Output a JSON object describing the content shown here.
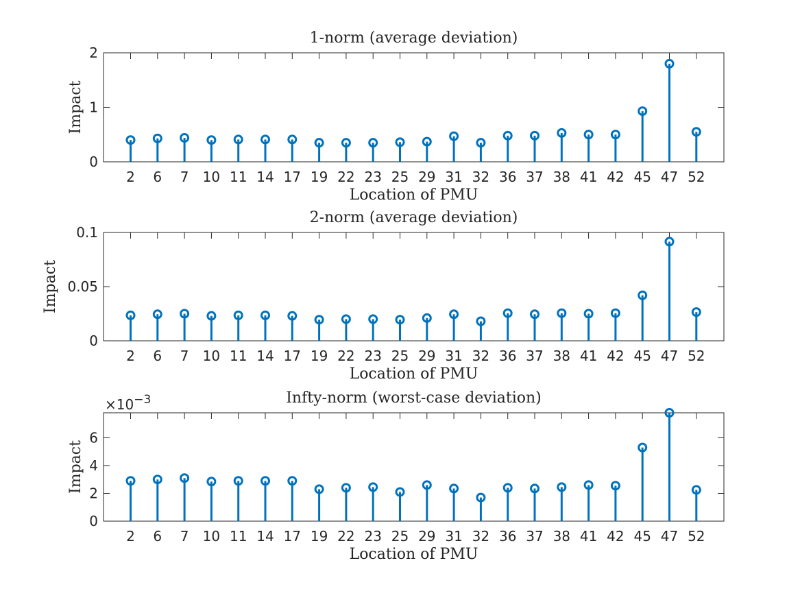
{
  "chart_data": [
    {
      "type": "scatter",
      "subtype": "stem",
      "title": "1-norm (average deviation)",
      "xlabel": "Location of PMU",
      "ylabel": "Impact",
      "categories": [
        "2",
        "6",
        "7",
        "10",
        "11",
        "14",
        "17",
        "19",
        "22",
        "23",
        "25",
        "29",
        "31",
        "32",
        "36",
        "37",
        "38",
        "41",
        "42",
        "45",
        "47",
        "52"
      ],
      "values": [
        0.4,
        0.43,
        0.44,
        0.4,
        0.41,
        0.41,
        0.41,
        0.35,
        0.35,
        0.35,
        0.36,
        0.37,
        0.47,
        0.35,
        0.48,
        0.48,
        0.53,
        0.5,
        0.5,
        0.93,
        1.8,
        0.55
      ],
      "ylim": [
        0,
        2
      ],
      "yticks": [
        0,
        1,
        2
      ],
      "ytick_labels": [
        "0",
        "1",
        "2"
      ],
      "exponent_label": "",
      "color": "#0072BD"
    },
    {
      "type": "scatter",
      "subtype": "stem",
      "title": "2-norm (average deviation)",
      "xlabel": "Location of PMU",
      "ylabel": "Impact",
      "categories": [
        "2",
        "6",
        "7",
        "10",
        "11",
        "14",
        "17",
        "19",
        "22",
        "23",
        "25",
        "29",
        "31",
        "32",
        "36",
        "37",
        "38",
        "41",
        "42",
        "45",
        "47",
        "52"
      ],
      "values": [
        0.0235,
        0.0245,
        0.025,
        0.023,
        0.0235,
        0.0235,
        0.023,
        0.0195,
        0.02,
        0.02,
        0.0195,
        0.021,
        0.0245,
        0.018,
        0.0255,
        0.0245,
        0.0255,
        0.025,
        0.0255,
        0.042,
        0.0915,
        0.0265
      ],
      "ylim": [
        0,
        0.1
      ],
      "yticks": [
        0,
        0.05,
        0.1
      ],
      "ytick_labels": [
        "0",
        "0.05",
        "0.1"
      ],
      "exponent_label": "",
      "color": "#0072BD"
    },
    {
      "type": "scatter",
      "subtype": "stem",
      "title": "Infty-norm (worst-case deviation)",
      "xlabel": "Location of PMU",
      "ylabel": "Impact",
      "categories": [
        "2",
        "6",
        "7",
        "10",
        "11",
        "14",
        "17",
        "19",
        "22",
        "23",
        "25",
        "29",
        "31",
        "32",
        "36",
        "37",
        "38",
        "41",
        "42",
        "45",
        "47",
        "52"
      ],
      "values": [
        0.0029,
        0.003,
        0.0031,
        0.00285,
        0.0029,
        0.0029,
        0.0029,
        0.0023,
        0.0024,
        0.00245,
        0.0021,
        0.0026,
        0.00235,
        0.0017,
        0.0024,
        0.00235,
        0.00245,
        0.0026,
        0.00255,
        0.0053,
        0.0078,
        0.00225
      ],
      "ylim": [
        0,
        0.0078
      ],
      "yticks": [
        0,
        0.002,
        0.004,
        0.006
      ],
      "ytick_labels": [
        "0",
        "2",
        "4",
        "6"
      ],
      "exponent_label": "×10",
      "exponent_power": "−3",
      "color": "#0072BD"
    }
  ]
}
